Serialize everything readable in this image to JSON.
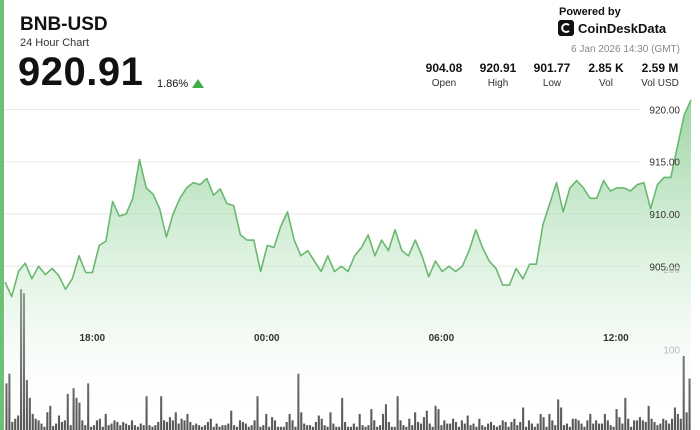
{
  "header": {
    "title": "BNB-USD",
    "subtitle": "24 Hour Chart",
    "price": "920.91",
    "change": "1.86%",
    "powered_by": "Powered by",
    "brand": "CoinDeskData",
    "timestamp": "6 Jan 2026 14:30 (GMT)"
  },
  "stats": [
    {
      "value": "904.08",
      "label": "Open"
    },
    {
      "value": "920.91",
      "label": "High"
    },
    {
      "value": "901.77",
      "label": "Low"
    },
    {
      "value": "2.85 K",
      "label": "Vol"
    },
    {
      "value": "2.59 M",
      "label": "Vol USD"
    }
  ],
  "colors": {
    "accent": "#6cc177",
    "line": "#6ab870",
    "up": "#3fae4a",
    "volume_bar": "#555555"
  },
  "chart_data": [
    {
      "type": "area",
      "title": "",
      "x_ticks": [
        "18:00",
        "00:00",
        "06:00",
        "12:00"
      ],
      "x_tick_positions": [
        4.5,
        10.5,
        16.5,
        22.5
      ],
      "x_range": [
        1.5,
        25.08
      ],
      "y_ticks": [
        "920.00",
        "915.00",
        "910.00",
        "905.00"
      ],
      "y_tick_values": [
        920,
        915,
        910,
        905
      ],
      "ylim": [
        901.2,
        921.0
      ],
      "grid": true,
      "series": [
        {
          "values": [
            903.5,
            902.1,
            904.5,
            905.3,
            903.8,
            905.0,
            904.2,
            904.8,
            904.1,
            902.8,
            903.8,
            906.0,
            904.4,
            904.4,
            907.0,
            907.4,
            911.2,
            909.8,
            910.0,
            911.5,
            915.2,
            912.5,
            911.9,
            910.5,
            907.8,
            910.0,
            911.5,
            912.5,
            913.0,
            912.8,
            913.4,
            911.8,
            912.4,
            911.0,
            910.8,
            908.0,
            907.5,
            907.5,
            904.5,
            907.0,
            906.8,
            908.8,
            910.2,
            907.5,
            906.0,
            906.5,
            905.5,
            904.5,
            906.0,
            904.5,
            905.0,
            904.5,
            906.0,
            906.8,
            908.0,
            906.0,
            907.5,
            906.5,
            908.5,
            906.5,
            906.0,
            907.5,
            906.0,
            904.0,
            905.5,
            904.5,
            905.0,
            904.5,
            905.0,
            906.5,
            908.5,
            906.8,
            905.5,
            904.8,
            903.2,
            903.2,
            904.8,
            903.8,
            905.2,
            905.2,
            909.0,
            911.0,
            913.0,
            910.2,
            912.5,
            913.2,
            912.5,
            911.5,
            911.5,
            913.2,
            912.2,
            912.5,
            912.5,
            912.2,
            912.8,
            913.0,
            910.5,
            912.8,
            913.5,
            913.5,
            916.5,
            919.5,
            920.91
          ]
        }
      ]
    },
    {
      "type": "bar",
      "title": "",
      "y_ticks": [
        "200",
        "100"
      ],
      "y_tick_values": [
        200,
        100
      ],
      "ylim": [
        0,
        220
      ],
      "series": [
        {
          "values": [
            58,
            70,
            10,
            14,
            18,
            175,
            170,
            62,
            40,
            20,
            14,
            12,
            8,
            4,
            22,
            30,
            5,
            8,
            18,
            10,
            12,
            45,
            6,
            52,
            40,
            34,
            12,
            6,
            58,
            4,
            6,
            12,
            14,
            4,
            20,
            6,
            8,
            12,
            10,
            6,
            10,
            8,
            6,
            12,
            6,
            4,
            8,
            6,
            42,
            6,
            4,
            6,
            10,
            42,
            12,
            10,
            16,
            12,
            22,
            8,
            14,
            12,
            20,
            10,
            6,
            8,
            6,
            4,
            6,
            10,
            14,
            4,
            8,
            4,
            6,
            6,
            8,
            24,
            6,
            4,
            12,
            10,
            8,
            4,
            6,
            12,
            42,
            4,
            6,
            20,
            4,
            16,
            12,
            4,
            4,
            4,
            10,
            20,
            12,
            4,
            70,
            22,
            8,
            6,
            6,
            4,
            10,
            18,
            14,
            6,
            4,
            22,
            8,
            4,
            4,
            40,
            10,
            4,
            4,
            8,
            4,
            20,
            6,
            4,
            6,
            26,
            12,
            4,
            6,
            20,
            32,
            10,
            4,
            4,
            42,
            12,
            6,
            4,
            14,
            6,
            22,
            10,
            8,
            16,
            24,
            8,
            4,
            30,
            26,
            6,
            12,
            8,
            8,
            14,
            10,
            4,
            12,
            8,
            18,
            6,
            8,
            4,
            14,
            6,
            4,
            8,
            10,
            6,
            4,
            6,
            12,
            10,
            4,
            10,
            14,
            6,
            10,
            28,
            4,
            12,
            8,
            4,
            8,
            20,
            16,
            4,
            20,
            12,
            6,
            38,
            28,
            6,
            8,
            4,
            14,
            14,
            12,
            8,
            4,
            12,
            20,
            8,
            12,
            8,
            8,
            20,
            12,
            6,
            4,
            26,
            16,
            8,
            40,
            14,
            4,
            12,
            12,
            16,
            12,
            10,
            30,
            14,
            10,
            6,
            8,
            14,
            12,
            8,
            14,
            28,
            20,
            14,
            92,
            22,
            64
          ]
        }
      ]
    }
  ]
}
